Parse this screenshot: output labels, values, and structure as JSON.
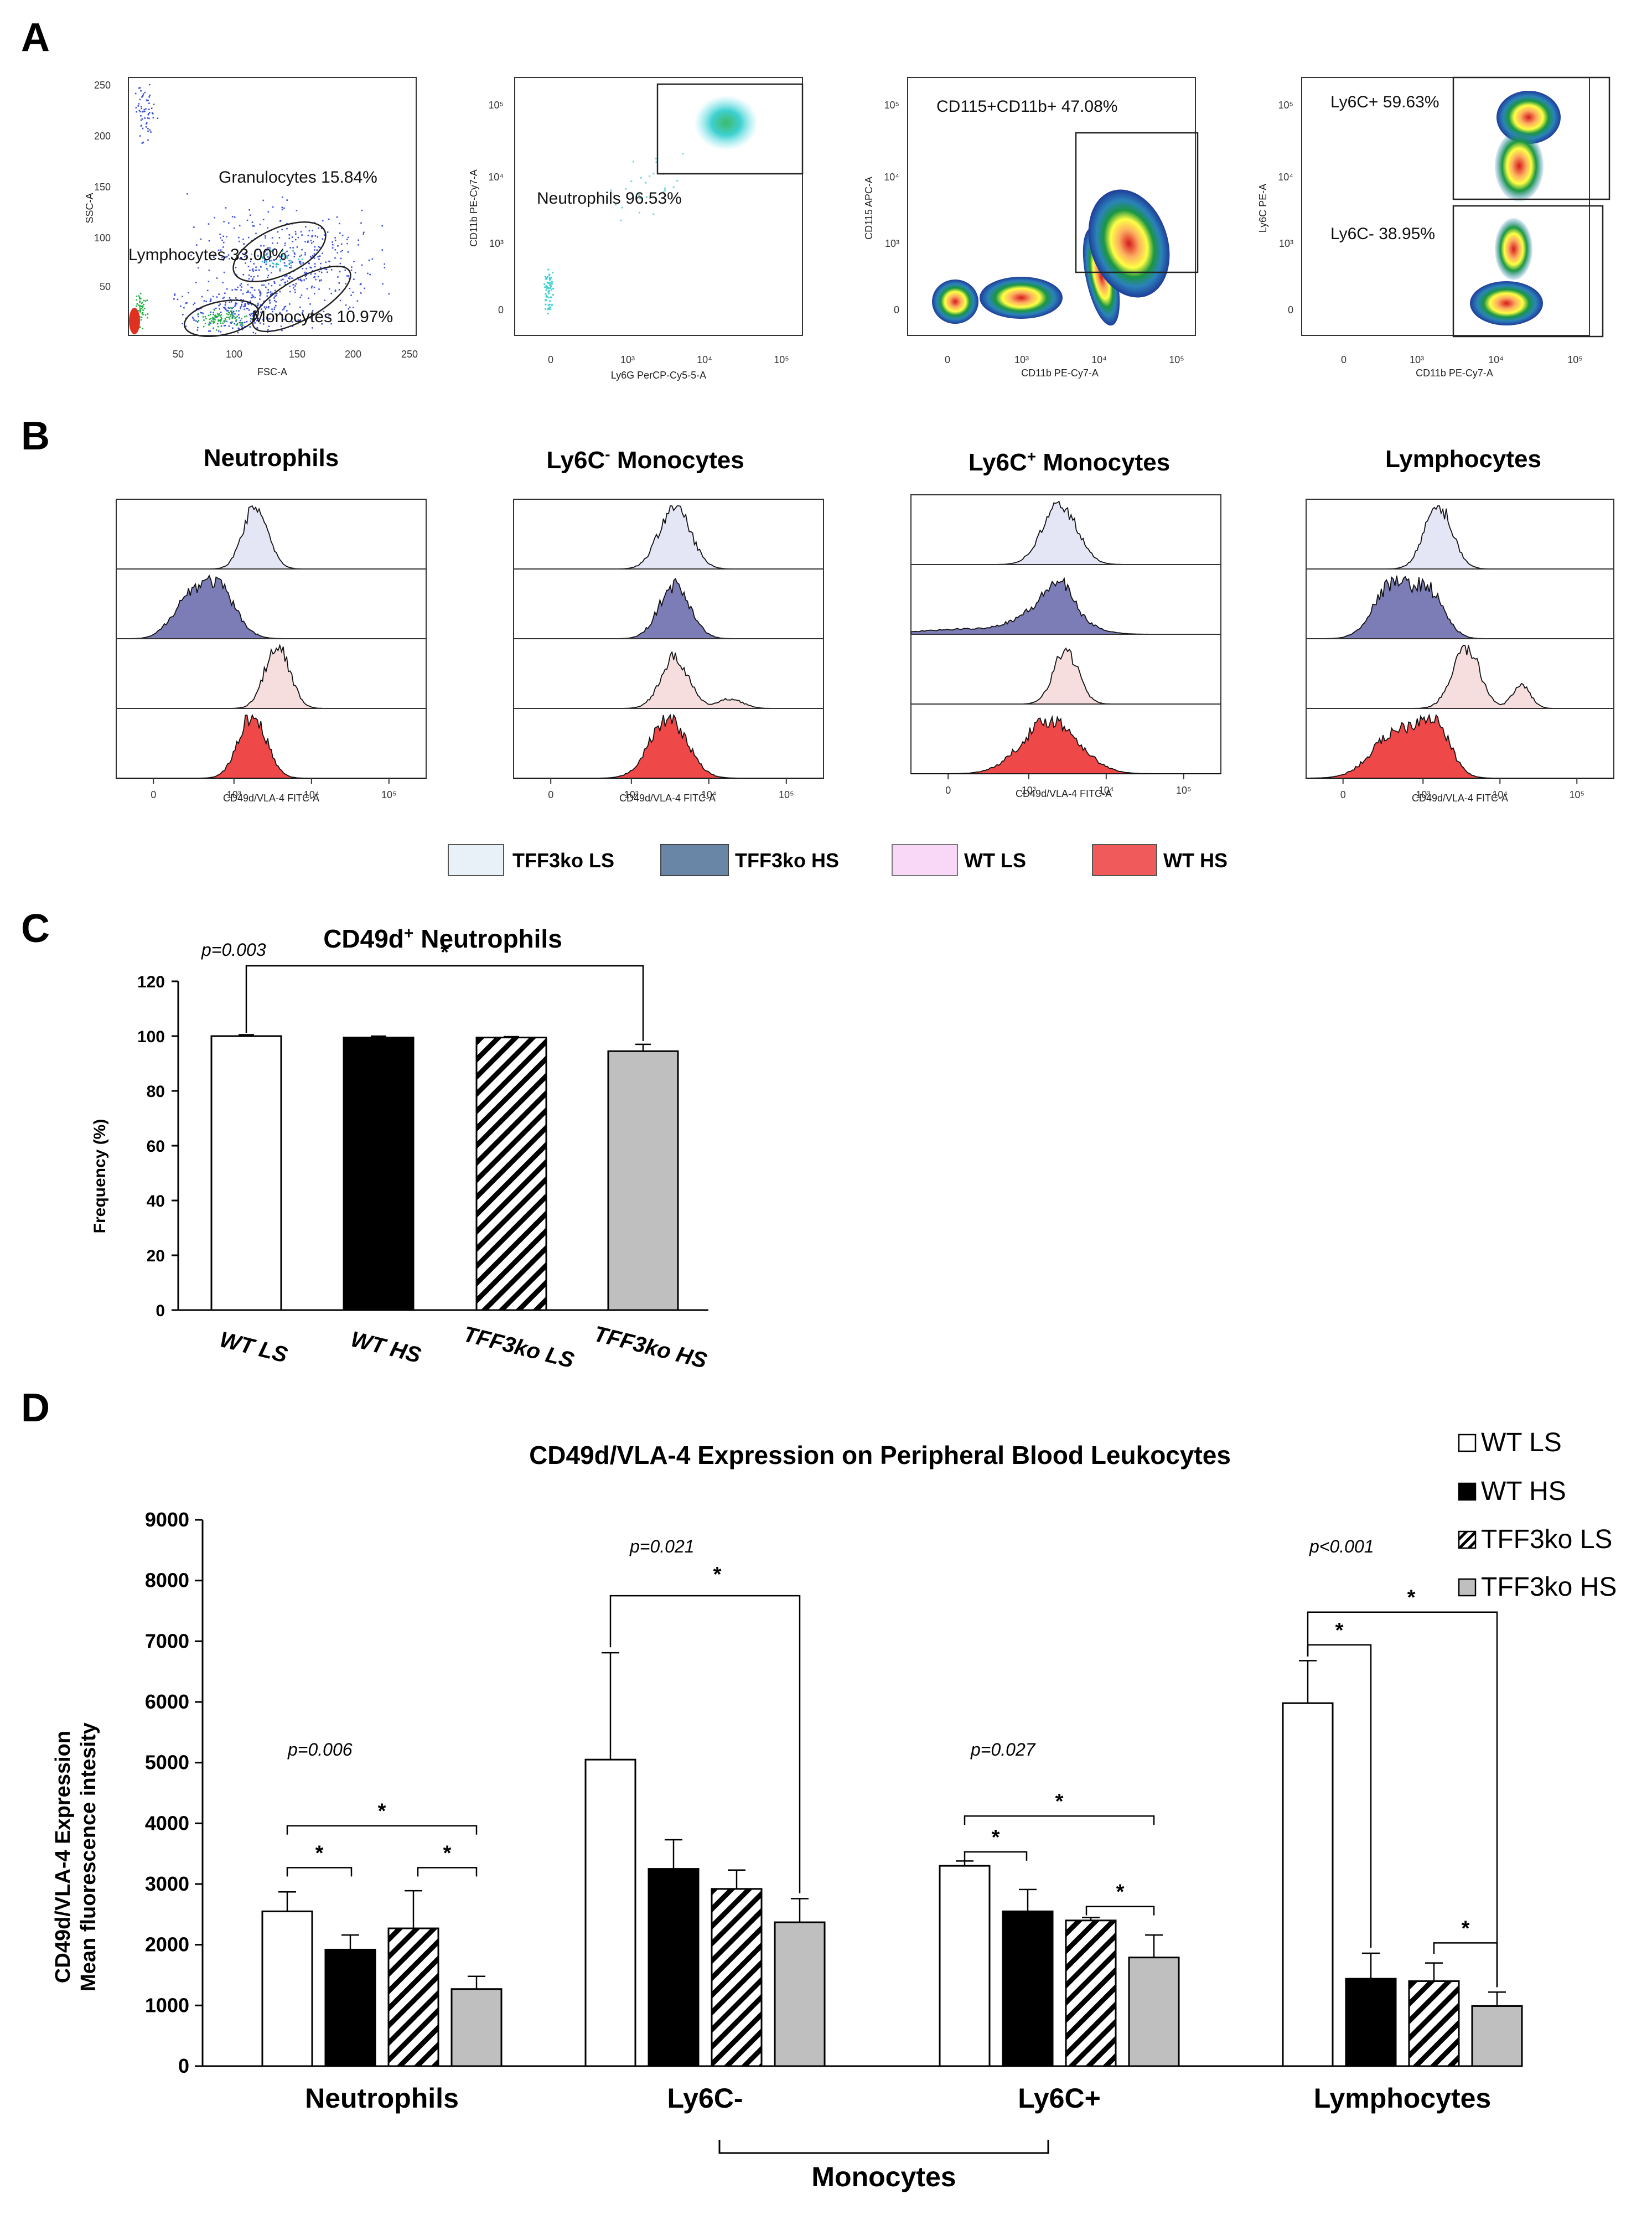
{
  "panel_labels": {
    "a": "A",
    "b": "B",
    "c": "C",
    "d": "D"
  },
  "colors": {
    "tff3ko_ls": "#e8f1f8",
    "tff3ko_hs": "#6a86a6",
    "wt_ls": "#f8d8f6",
    "wt_hs": "#f05a5a",
    "hist_ls_blue": "#e4e6f6",
    "hist_hs_blue": "#7c7cb6",
    "hist_ls_pink": "#f7dede",
    "hist_hs_red": "#ee4848",
    "gray_bar": "#bfbfbf"
  },
  "panel_a": {
    "plots": [
      {
        "xlabel": "FSC-A",
        "ylabel": "SSC-A",
        "xticks": [
          "50",
          "100",
          "150",
          "200",
          "250"
        ],
        "yticks": [
          "250",
          "200",
          "150",
          "100",
          "50"
        ],
        "gates": [
          "Granulocytes 15.84%",
          "Lymphocytes 33.00%",
          "Monocytes 10.97%"
        ]
      },
      {
        "xlabel": "Ly6G PerCP-Cy5-5-A",
        "ylabel": "CD11b PE-Cy7-A",
        "xticks": [
          "0",
          "10³",
          "10⁴",
          "10⁵"
        ],
        "yticks": [
          "10⁵",
          "10⁴",
          "10³",
          "0"
        ],
        "gates": [
          "Neutrophils 96.53%"
        ]
      },
      {
        "xlabel": "CD11b PE-Cy7-A",
        "ylabel": "CD115 APC-A",
        "xticks": [
          "0",
          "10³",
          "10⁴",
          "10⁵"
        ],
        "yticks": [
          "10⁵",
          "10⁴",
          "10³",
          "0"
        ],
        "gates": [
          "CD115+CD11b+ 47.08%"
        ]
      },
      {
        "xlabel": "CD11b PE-Cy7-A",
        "ylabel": "Ly6C PE-A",
        "xticks": [
          "0",
          "10³",
          "10⁴",
          "10⁵"
        ],
        "yticks": [
          "10⁵",
          "10⁴",
          "10³",
          "0"
        ],
        "gates": [
          "Ly6C+ 59.63%",
          "Ly6C- 38.95%"
        ]
      }
    ]
  },
  "panel_b": {
    "titles": [
      {
        "base": "Neutrophils",
        "sup": "",
        "rest": ""
      },
      {
        "base": "Ly6C",
        "sup": "-",
        "rest": " Monocytes"
      },
      {
        "base": "Ly6C",
        "sup": "+",
        "rest": " Monocytes"
      },
      {
        "base": "Lymphocytes",
        "sup": "",
        "rest": ""
      }
    ],
    "xlabel": "CD49d/VLA-4 FITC-A",
    "xticks": [
      "0",
      "10³",
      "10⁴",
      "10⁵"
    ],
    "legend": [
      "TFF3ko LS",
      "TFF3ko HS",
      "WT LS",
      "WT HS"
    ]
  },
  "chart_data": [
    {
      "type": "bar",
      "title": "CD49d",
      "title_sup": "+",
      "title_rest": " Neutrophils",
      "categories": [
        "WT LS",
        "WT HS",
        "TFF3ko LS",
        "TFF3ko HS"
      ],
      "values": [
        100,
        99.5,
        99.5,
        94.5
      ],
      "errors": [
        0.5,
        0.5,
        0.3,
        2.5
      ],
      "ylabel": "Frequency (%)",
      "ylim": [
        0,
        120
      ],
      "yticks": [
        "0",
        "20",
        "40",
        "60",
        "80",
        "100",
        "120"
      ],
      "annotations": [
        {
          "text": "p=0.003"
        },
        {
          "text": "*",
          "from": "WT LS",
          "to": "TFF3ko HS"
        }
      ]
    },
    {
      "type": "bar",
      "title": "CD49d/VLA-4 Expression on Peripheral Blood Leukocytes",
      "ylabel_line1": "CD49d/VLA-4 Expression",
      "ylabel_line2": "Mean fluorescence intesity",
      "ylim": [
        0,
        9000
      ],
      "yticks": [
        "0",
        "1000",
        "2000",
        "3000",
        "4000",
        "5000",
        "6000",
        "7000",
        "8000",
        "9000"
      ],
      "categories": [
        "Neutrophils",
        "Ly6C-",
        "Ly6C+",
        "Lymphocytes"
      ],
      "group_label": "Monocytes",
      "series": [
        {
          "name": "WT LS",
          "values": [
            2550,
            5050,
            3300,
            5980
          ],
          "errors": [
            320,
            1760,
            80,
            700
          ]
        },
        {
          "name": "WT HS",
          "values": [
            1920,
            3250,
            2550,
            1440
          ],
          "errors": [
            240,
            480,
            360,
            420
          ]
        },
        {
          "name": "TFF3ko LS",
          "values": [
            2270,
            2920,
            2400,
            1400
          ],
          "errors": [
            620,
            310,
            50,
            300
          ]
        },
        {
          "name": "TFF3ko HS",
          "values": [
            1270,
            2370,
            1790,
            990
          ],
          "errors": [
            210,
            390,
            370,
            230
          ]
        }
      ],
      "pvalues": [
        "p=0.006",
        "p=0.021",
        "p=0.027",
        "p<0.001"
      ],
      "star": "*"
    }
  ]
}
